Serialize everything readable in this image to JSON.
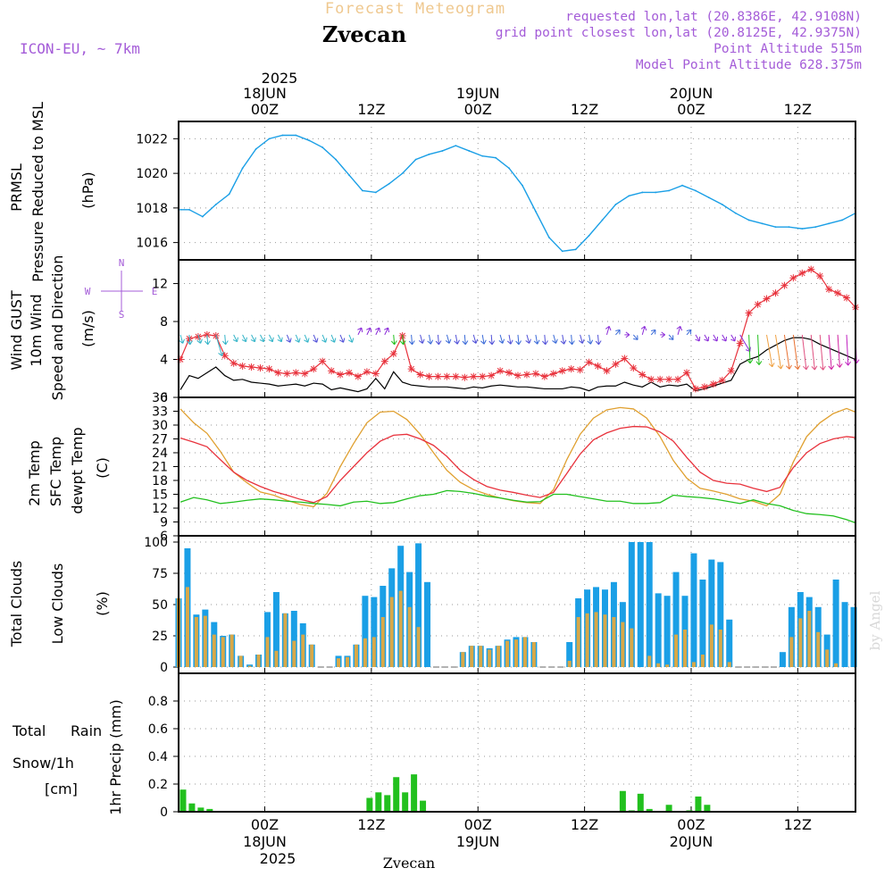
{
  "header": {
    "subtitle": "Forecast Meteogram",
    "location": "Zvecan",
    "model": "ICON-EU, ~ 7km",
    "requested": "requested lon,lat (20.8386E, 42.9108N)",
    "gridpoint": "grid point closest lon,lat (20.8125E, 42.9375N)",
    "point_alt": "Point Altitude 515m",
    "model_alt": "Model Point Altitude 628.375m",
    "watermark": "by Angel",
    "footer_location": "Zvecan"
  },
  "time_axis": {
    "top_year": "2025",
    "tick_labels": [
      {
        "label": "00Z",
        "day": "18JUN",
        "hour": 24
      },
      {
        "label": "12Z",
        "day": "",
        "hour": 36
      },
      {
        "label": "00Z",
        "day": "19JUN",
        "hour": 48
      },
      {
        "label": "12Z",
        "day": "",
        "hour": 60
      },
      {
        "label": "00Z",
        "day": "20JUN",
        "hour": 72
      },
      {
        "label": "12Z",
        "day": "",
        "hour": 84
      }
    ],
    "bottom_year": "2025",
    "start_hour": 14.3,
    "end_hour": 90.5
  },
  "panel_labels": {
    "pressure": {
      "l1": "PRMSL",
      "l2": "Pressure Reduced to MSL",
      "unit": "(hPa)"
    },
    "wind": {
      "l1": "Wind GUST",
      "l2": "10m Wind",
      "l3": "Speed and Direction",
      "unit": "(m/s)",
      "compass": {
        "n": "N",
        "s": "S",
        "w": "W",
        "e": "E"
      }
    },
    "temp": {
      "l1": "2m Temp",
      "l2": "SFC Temp",
      "l3": "dewpt Temp",
      "unit": "(C)"
    },
    "clouds": {
      "l1": "Total Clouds",
      "l2": "Low Clouds",
      "unit": "(%)"
    },
    "precip": {
      "l1": "Total",
      "l1b": "Rain",
      "l2": "Snow/1h",
      "l3": "[cm]",
      "unit": "1hr Precip (mm)"
    }
  },
  "colors": {
    "pressure": "#1a9fe6",
    "gust": "#e8323c",
    "wind": "#000000",
    "temp2m": "#e8323c",
    "sfc": "#e0a030",
    "dew": "#22c01e",
    "total_cloud": "#1a9fe6",
    "low_cloud": "#d8a848",
    "rain": "#22c01e",
    "snow": "#3a3ad0",
    "purple": "#a45cd8"
  },
  "chart_data": [
    {
      "type": "line",
      "title": "PRMSL Pressure Reduced to MSL",
      "ylabel": "(hPa)",
      "ylim": [
        1015,
        1023
      ],
      "yticks": [
        1016,
        1018,
        1020,
        1022
      ],
      "x": [
        14.5,
        15.5,
        17,
        18.5,
        20,
        21.5,
        23,
        24.5,
        26,
        27.5,
        29,
        30.5,
        32,
        33.5,
        35,
        36.5,
        38,
        39.5,
        41,
        42.5,
        44,
        45.5,
        47,
        48.5,
        50,
        51.5,
        53,
        54.5,
        56,
        57.5,
        59,
        60.5,
        62,
        63.5,
        65,
        66.5,
        68,
        69.5,
        71,
        72.5,
        74,
        75.5,
        77,
        78.5,
        80,
        81.5,
        83,
        84.5,
        86,
        87.5,
        89,
        90.5
      ],
      "values": [
        1017.9,
        1017.9,
        1017.5,
        1018.2,
        1018.8,
        1020.3,
        1021.4,
        1022.0,
        1022.2,
        1022.2,
        1021.9,
        1021.5,
        1020.8,
        1019.9,
        1019.0,
        1018.9,
        1019.4,
        1020.0,
        1020.8,
        1021.1,
        1021.3,
        1021.6,
        1021.3,
        1021.0,
        1020.9,
        1020.3,
        1019.3,
        1017.8,
        1016.3,
        1015.5,
        1015.6,
        1016.4,
        1017.3,
        1018.2,
        1018.7,
        1018.9,
        1018.9,
        1019.0,
        1019.3,
        1019.0,
        1018.6,
        1018.2,
        1017.7,
        1017.3,
        1017.1,
        1016.9,
        1016.9,
        1016.8,
        1016.9,
        1017.1,
        1017.3,
        1017.7
      ]
    },
    {
      "type": "line",
      "title": "Wind GUST / 10m Wind Speed and Direction",
      "ylabel": "(m/s)",
      "ylim": [
        0,
        14.5
      ],
      "yticks": [
        0,
        4,
        8,
        12
      ],
      "x": [
        14.5,
        15.5,
        16.5,
        17.5,
        18.5,
        19.5,
        20.5,
        21.5,
        22.5,
        23.5,
        24.5,
        25.5,
        26.5,
        27.5,
        28.5,
        29.5,
        30.5,
        31.5,
        32.5,
        33.5,
        34.5,
        35.5,
        36.5,
        37.5,
        38.5,
        39.5,
        40.5,
        41.5,
        42.5,
        43.5,
        44.5,
        45.5,
        46.5,
        47.5,
        48.5,
        49.5,
        50.5,
        51.5,
        52.5,
        53.5,
        54.5,
        55.5,
        56.5,
        57.5,
        58.5,
        59.5,
        60.5,
        61.5,
        62.5,
        63.5,
        64.5,
        65.5,
        66.5,
        67.5,
        68.5,
        69.5,
        70.5,
        71.5,
        72.5,
        73.5,
        74.5,
        75.5,
        76.5,
        77.5,
        78.5,
        79.5,
        80.5,
        81.5,
        82.5,
        83.5,
        84.5,
        85.5,
        86.5,
        87.5,
        88.5,
        89.5,
        90.5
      ],
      "series": [
        {
          "name": "Wind GUST",
          "values": [
            4.0,
            6.2,
            6.4,
            6.6,
            6.5,
            4.4,
            3.6,
            3.3,
            3.2,
            3.1,
            3.0,
            2.6,
            2.5,
            2.6,
            2.5,
            3.0,
            3.8,
            2.8,
            2.4,
            2.6,
            2.2,
            2.7,
            2.5,
            3.8,
            4.6,
            6.5,
            3.0,
            2.4,
            2.2,
            2.2,
            2.2,
            2.2,
            2.1,
            2.2,
            2.2,
            2.3,
            2.8,
            2.6,
            2.3,
            2.4,
            2.5,
            2.2,
            2.5,
            2.8,
            3.0,
            2.9,
            3.7,
            3.3,
            2.8,
            3.5,
            4.1,
            3.1,
            2.4,
            1.9,
            1.9,
            1.9,
            1.9,
            2.6,
            0.9,
            1.1,
            1.4,
            1.8,
            2.8,
            5.7,
            8.9,
            9.8,
            10.4,
            11.0,
            11.8,
            12.6,
            13.1,
            13.5,
            12.8,
            11.4,
            11.0,
            10.5,
            9.5
          ]
        },
        {
          "name": "10m Wind",
          "values": [
            0.8,
            2.3,
            2.0,
            2.6,
            3.2,
            2.3,
            1.8,
            1.9,
            1.6,
            1.5,
            1.4,
            1.2,
            1.3,
            1.4,
            1.2,
            1.5,
            1.4,
            0.8,
            1.0,
            0.8,
            0.6,
            0.9,
            2.0,
            0.9,
            2.7,
            1.6,
            1.3,
            1.2,
            1.1,
            1.1,
            1.1,
            1.0,
            0.9,
            1.1,
            1.0,
            1.2,
            1.3,
            1.2,
            1.1,
            1.1,
            1.0,
            0.9,
            0.9,
            0.9,
            1.1,
            1.0,
            0.7,
            1.1,
            1.2,
            1.2,
            1.6,
            1.3,
            1.1,
            1.6,
            1.1,
            1.3,
            1.2,
            1.4,
            0.7,
            0.9,
            1.2,
            1.5,
            1.8,
            3.5,
            4.0,
            4.3,
            5.0,
            5.5,
            6.0,
            6.3,
            6.3,
            6.1,
            5.6,
            5.2,
            4.8,
            4.4,
            4.0
          ]
        }
      ]
    },
    {
      "type": "line",
      "title": "2m Temp / SFC Temp / dewpt Temp",
      "ylabel": "(C)",
      "ylim": [
        6,
        36
      ],
      "yticks": [
        6,
        9,
        12,
        15,
        18,
        21,
        24,
        27,
        30,
        33,
        36
      ],
      "x": [
        14.5,
        16,
        17.5,
        19,
        20.5,
        22,
        23.5,
        25,
        26.5,
        28,
        29.5,
        31,
        32.5,
        34,
        35.5,
        37,
        38.5,
        40,
        41.5,
        43,
        44.5,
        46,
        47.5,
        49,
        50.5,
        52,
        53.5,
        55,
        56.5,
        58,
        59.5,
        61,
        62.5,
        64,
        65.5,
        67,
        68.5,
        70,
        71.5,
        73,
        74.5,
        76,
        77.5,
        79,
        80.5,
        82,
        83.5,
        85,
        86.5,
        88,
        89.5,
        90.5
      ],
      "series": [
        {
          "name": "2m Temp",
          "values": [
            27.2,
            26.3,
            25.3,
            22.5,
            19.8,
            18.0,
            16.7,
            15.6,
            14.8,
            13.9,
            13.2,
            14.5,
            18.0,
            21.0,
            24.0,
            26.5,
            27.8,
            28.0,
            27.0,
            25.6,
            23.2,
            20.2,
            18.2,
            16.7,
            15.9,
            15.4,
            14.8,
            14.3,
            15.4,
            19.5,
            23.7,
            26.8,
            28.3,
            29.3,
            29.7,
            29.6,
            28.5,
            26.5,
            23.0,
            19.8,
            18.0,
            17.4,
            17.2,
            16.3,
            15.6,
            16.5,
            20.8,
            24.0,
            26.0,
            27.0,
            27.5,
            27.3
          ]
        },
        {
          "name": "SFC Temp",
          "values": [
            33.5,
            30.5,
            28.2,
            24.3,
            19.8,
            17.5,
            15.5,
            14.8,
            13.7,
            12.8,
            12.3,
            15.2,
            21.0,
            26.0,
            30.5,
            32.8,
            33.0,
            31.2,
            28.0,
            24.0,
            20.2,
            17.6,
            16.0,
            15.0,
            14.2,
            13.6,
            13.2,
            13.0,
            16.0,
            22.5,
            28.0,
            31.5,
            33.3,
            33.8,
            33.5,
            31.5,
            27.5,
            22.3,
            18.5,
            16.3,
            15.7,
            15.0,
            14.0,
            13.5,
            12.5,
            15.0,
            22.0,
            27.5,
            30.5,
            32.5,
            33.6,
            32.8
          ]
        },
        {
          "name": "dewpt Temp",
          "values": [
            13.3,
            14.3,
            13.8,
            13.0,
            13.3,
            13.7,
            14.0,
            13.8,
            13.5,
            13.3,
            13.0,
            12.8,
            12.5,
            13.3,
            13.5,
            13.0,
            13.2,
            14.0,
            14.7,
            15.0,
            15.8,
            15.6,
            15.2,
            14.6,
            14.2,
            13.7,
            13.3,
            13.4,
            15.0,
            15.0,
            14.5,
            14.0,
            13.5,
            13.5,
            13.0,
            13.0,
            13.2,
            14.8,
            14.5,
            14.3,
            14.0,
            13.5,
            13.0,
            13.8,
            13.0,
            12.5,
            11.5,
            10.8,
            10.6,
            10.3,
            9.5,
            8.8
          ]
        }
      ]
    },
    {
      "type": "bar",
      "title": "Total Clouds / Low Clouds",
      "ylabel": "(%)",
      "ylim": [
        -5,
        105
      ],
      "yticks": [
        0,
        25,
        50,
        75,
        100
      ],
      "x": [
        14.3,
        15.3,
        16.3,
        17.3,
        18.3,
        19.3,
        20.3,
        21.3,
        22.3,
        23.3,
        24.3,
        25.3,
        26.3,
        27.3,
        28.3,
        29.3,
        30.3,
        31.3,
        32.3,
        33.3,
        34.3,
        35.3,
        36.3,
        37.3,
        38.3,
        39.3,
        40.3,
        41.3,
        42.3,
        43.3,
        44.3,
        45.3,
        46.3,
        47.3,
        48.3,
        49.3,
        50.3,
        51.3,
        52.3,
        53.3,
        54.3,
        55.3,
        56.3,
        57.3,
        58.3,
        59.3,
        60.3,
        61.3,
        62.3,
        63.3,
        64.3,
        65.3,
        66.3,
        67.3,
        68.3,
        69.3,
        70.3,
        71.3,
        72.3,
        73.3,
        74.3,
        75.3,
        76.3,
        77.3,
        78.3,
        79.3,
        80.3,
        81.3,
        82.3,
        83.3,
        84.3,
        85.3,
        86.3,
        87.3,
        88.3,
        89.3,
        90.3
      ],
      "series": [
        {
          "name": "Total Clouds",
          "values": [
            55,
            95,
            42,
            46,
            36,
            25,
            26,
            9,
            2,
            10,
            44,
            60,
            43,
            45,
            35,
            18,
            0,
            0,
            9,
            9,
            18,
            57,
            56,
            65,
            79,
            97,
            76,
            99,
            68,
            0,
            0,
            0,
            12,
            17,
            17,
            15,
            17,
            22,
            24,
            24,
            20,
            0,
            0,
            0,
            20,
            55,
            62,
            64,
            62,
            68,
            52,
            100,
            100,
            100,
            59,
            57,
            76,
            57,
            91,
            70,
            86,
            84,
            38,
            0,
            0,
            0,
            0,
            0,
            12,
            48,
            60,
            56,
            48,
            26,
            70,
            52,
            48
          ]
        },
        {
          "name": "Low Clouds",
          "values": [
            55,
            64,
            40,
            41,
            26,
            24,
            26,
            9,
            1,
            10,
            24,
            13,
            43,
            21,
            26,
            18,
            0,
            0,
            7,
            8,
            18,
            23,
            24,
            40,
            56,
            61,
            48,
            32,
            0,
            0,
            0,
            0,
            12,
            17,
            17,
            14,
            17,
            21,
            22,
            24,
            20,
            0,
            0,
            0,
            5,
            40,
            43,
            44,
            42,
            40,
            36,
            31,
            0,
            9,
            3,
            2,
            26,
            30,
            4,
            10,
            34,
            30,
            4,
            0,
            0,
            0,
            0,
            0,
            0,
            24,
            39,
            45,
            28,
            14,
            3,
            0,
            0
          ]
        }
      ]
    },
    {
      "type": "bar",
      "title": "1hr Precip",
      "ylabel": "1hr Precip (mm)",
      "ylim": [
        0,
        1.0
      ],
      "yticks": [
        0,
        0.2,
        0.4,
        0.6,
        0.8
      ],
      "x": [
        14.8,
        15.8,
        16.8,
        17.8,
        35.8,
        36.8,
        37.8,
        38.8,
        39.8,
        40.8,
        41.8,
        64.3,
        65.3,
        66.3,
        67.3,
        69.5,
        71.8,
        72.8,
        73.8
      ],
      "series": [
        {
          "name": "Rain",
          "values": [
            0.16,
            0.06,
            0.03,
            0.02,
            0.1,
            0.14,
            0.12,
            0.25,
            0.14,
            0.27,
            0.08,
            0.15,
            0.01,
            0.13,
            0.02,
            0.05,
            0.01,
            0.11,
            0.05
          ]
        }
      ]
    }
  ]
}
